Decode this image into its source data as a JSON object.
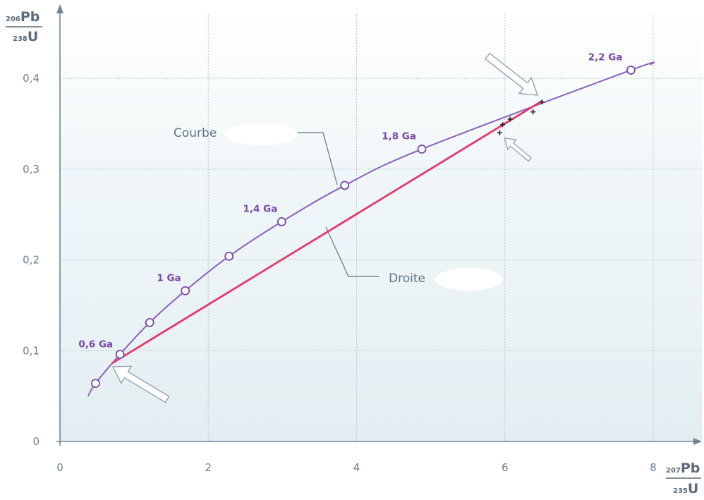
{
  "chart_data": {
    "type": "line",
    "title": "",
    "xlabel": {
      "iso": "Pb",
      "iso_mass": "207",
      "den": "U",
      "den_mass": "235"
    },
    "ylabel": {
      "iso": "Pb",
      "iso_mass": "206",
      "den": "U",
      "den_mass": "238"
    },
    "xlim": [
      0,
      8.6
    ],
    "ylim": [
      0,
      0.46
    ],
    "x_ticks": [
      0,
      2,
      4,
      6,
      8
    ],
    "y_ticks": [
      0,
      0.1,
      0.2,
      0.3,
      0.4
    ],
    "x_tick_labels": [
      "0",
      "2",
      "4",
      "6",
      "8"
    ],
    "y_tick_labels": [
      "0",
      "0,1",
      "0,2",
      "0,3",
      "0,4"
    ],
    "grid": true,
    "colors": {
      "curve": "#8a62b8",
      "line": "#e23a6e",
      "grid": "#b8c6cc",
      "axis": "#6d8596",
      "marker": "#7a4aa8"
    },
    "curve": {
      "points": [
        {
          "x": 0.48,
          "y": 0.064
        },
        {
          "x": 0.81,
          "y": 0.096,
          "label": "0,6 Ga"
        },
        {
          "x": 1.21,
          "y": 0.131
        },
        {
          "x": 1.69,
          "y": 0.166,
          "label": "1 Ga"
        },
        {
          "x": 2.28,
          "y": 0.204
        },
        {
          "x": 2.99,
          "y": 0.242,
          "label": "1,4 Ga"
        },
        {
          "x": 3.84,
          "y": 0.282
        },
        {
          "x": 4.88,
          "y": 0.322,
          "label": "1,8 Ga"
        },
        {
          "x": 7.7,
          "y": 0.409,
          "label": "2,2 Ga"
        }
      ],
      "start": {
        "x": 0.38,
        "y": 0.05
      },
      "end": {
        "x": 7.97,
        "y": 0.415
      }
    },
    "line": {
      "from": {
        "x": 0.7,
        "y": 0.086
      },
      "to": {
        "x": 6.5,
        "y": 0.375
      }
    },
    "measurements": [
      {
        "x": 5.93,
        "y": 0.34
      },
      {
        "x": 5.97,
        "y": 0.349
      },
      {
        "x": 6.07,
        "y": 0.355
      },
      {
        "x": 6.38,
        "y": 0.363
      },
      {
        "x": 6.5,
        "y": 0.374
      }
    ],
    "annotations": {
      "curve_label": "Courbe",
      "line_label": "Droite"
    }
  }
}
